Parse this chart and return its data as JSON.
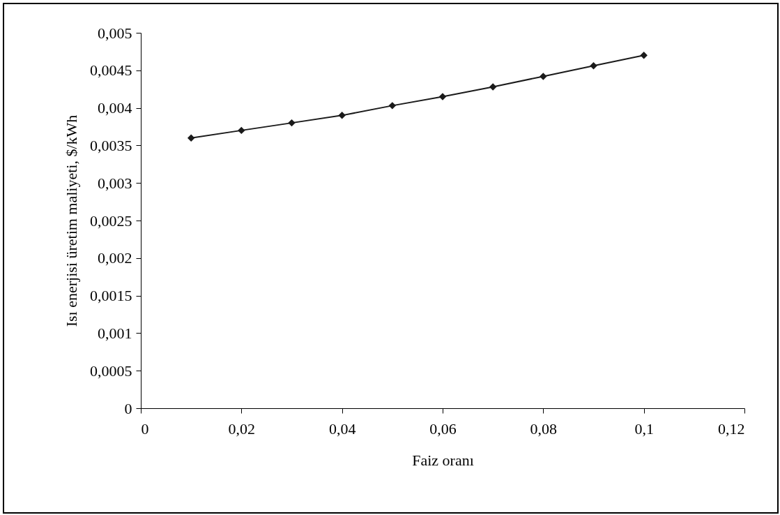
{
  "chart_data": {
    "type": "line",
    "xlabel": "Faiz oranı",
    "ylabel": "Isı enerjisi üretim maliyeti, $/kWh",
    "x": [
      0.01,
      0.02,
      0.03,
      0.04,
      0.05,
      0.06,
      0.07,
      0.08,
      0.09,
      0.1
    ],
    "series": [
      {
        "color": "#1a1a1a",
        "values": [
          0.0036,
          0.0037,
          0.0038,
          0.0039,
          0.00403,
          0.00415,
          0.00428,
          0.00442,
          0.00456,
          0.0047
        ]
      }
    ],
    "marker": "diamond",
    "line_style": "solid",
    "xlim": [
      0,
      0.12
    ],
    "xticks": [
      {
        "value": 0,
        "label": "0"
      },
      {
        "value": 0.02,
        "label": "0,02"
      },
      {
        "value": 0.04,
        "label": "0,04"
      },
      {
        "value": 0.06,
        "label": "0,06"
      },
      {
        "value": 0.08,
        "label": "0,08"
      },
      {
        "value": 0.1,
        "label": "0,1"
      },
      {
        "value": 0.12,
        "label": "0,12"
      }
    ],
    "ylim": [
      0,
      0.005
    ],
    "yticks": [
      {
        "value": 0,
        "label": "0"
      },
      {
        "value": 0.0005,
        "label": "0,0005"
      },
      {
        "value": 0.001,
        "label": "0,001"
      },
      {
        "value": 0.0015,
        "label": "0,0015"
      },
      {
        "value": 0.002,
        "label": "0,002"
      },
      {
        "value": 0.0025,
        "label": "0,0025"
      },
      {
        "value": 0.003,
        "label": "0,003"
      },
      {
        "value": 0.0035,
        "label": "0,0035"
      },
      {
        "value": 0.004,
        "label": "0,004"
      },
      {
        "value": 0.0045,
        "label": "0,0045"
      },
      {
        "value": 0.005,
        "label": "0,005"
      }
    ]
  }
}
